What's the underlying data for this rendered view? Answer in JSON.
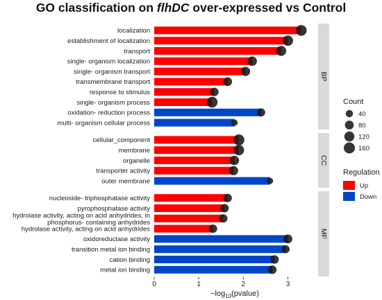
{
  "chart_data": {
    "type": "bar",
    "title_parts": [
      "GO classification on ",
      "flhDC",
      " over-expressed vs Control"
    ],
    "xlabel": {
      "prefix": "−log",
      "sub": "10",
      "suffix": "(pvalue)"
    },
    "xlim": [
      0,
      3.6
    ],
    "xticks": [
      0,
      1,
      2,
      3
    ],
    "colors": {
      "Up": "#ff0000",
      "Down": "#0047c8"
    },
    "groups": [
      {
        "name": "BP",
        "items": [
          {
            "label": "localization",
            "value": 3.3,
            "count": 150,
            "regulation": "Up"
          },
          {
            "label": "establishment of localization",
            "value": 3.0,
            "count": 130,
            "regulation": "Up"
          },
          {
            "label": "transport",
            "value": 2.85,
            "count": 120,
            "regulation": "Up"
          },
          {
            "label": "single- organism localization",
            "value": 2.2,
            "count": 95,
            "regulation": "Up"
          },
          {
            "label": "single- organism transport",
            "value": 2.05,
            "count": 90,
            "regulation": "Up"
          },
          {
            "label": "transmembrane transport",
            "value": 1.65,
            "count": 75,
            "regulation": "Up"
          },
          {
            "label": "response to stimulus",
            "value": 1.35,
            "count": 70,
            "regulation": "Up"
          },
          {
            "label": "single- organism process",
            "value": 1.3,
            "count": 150,
            "regulation": "Up"
          },
          {
            "label": "oxidation- reduction process",
            "value": 2.4,
            "count": 60,
            "regulation": "Down"
          },
          {
            "label": "multi- organism cellular process",
            "value": 1.8,
            "count": 25,
            "regulation": "Down"
          }
        ]
      },
      {
        "name": "CC",
        "items": [
          {
            "label": "cellular_component",
            "value": 1.9,
            "count": 155,
            "regulation": "Up"
          },
          {
            "label": "membrane",
            "value": 1.9,
            "count": 135,
            "regulation": "Up"
          },
          {
            "label": "organelle",
            "value": 1.8,
            "count": 95,
            "regulation": "Up"
          },
          {
            "label": "transporter activity",
            "value": 1.78,
            "count": 90,
            "regulation": "Up"
          },
          {
            "label": "outer membrane",
            "value": 2.6,
            "count": 20,
            "regulation": "Down"
          }
        ]
      },
      {
        "name": "MF",
        "items": [
          {
            "label": "nucleoside- triphosphatase activity",
            "value": 1.65,
            "count": 65,
            "regulation": "Up"
          },
          {
            "label": "pyrophosphatase activity",
            "value": 1.58,
            "count": 65,
            "regulation": "Up"
          },
          {
            "label": "hydrolase activity, acting on acid anhydrides, in phosphorus- containing anhydrides",
            "value": 1.55,
            "count": 65,
            "regulation": "Up"
          },
          {
            "label": "hydrolase activity, acting on acid anhydrides",
            "value": 1.32,
            "count": 65,
            "regulation": "Up"
          },
          {
            "label": "oxidoreductase activity",
            "value": 3.0,
            "count": 80,
            "regulation": "Down"
          },
          {
            "label": "transition metal ion binding",
            "value": 2.95,
            "count": 55,
            "regulation": "Down"
          },
          {
            "label": "cation binding",
            "value": 2.7,
            "count": 70,
            "regulation": "Down"
          },
          {
            "label": "metal ion binding",
            "value": 2.65,
            "count": 70,
            "regulation": "Down"
          }
        ]
      }
    ],
    "legend": {
      "count_title": "Count",
      "count_values": [
        40,
        80,
        120,
        160
      ],
      "regulation_title": "Regulation",
      "regulation_values": [
        "Up",
        "Down"
      ],
      "position": "right"
    }
  }
}
